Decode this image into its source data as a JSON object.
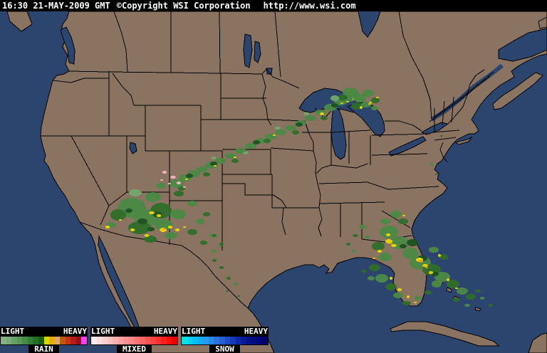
{
  "titlebar": {
    "datetime": "16:30 21-MAY-2009 GMT",
    "copyright": "©Copyright WSI Corporation",
    "url": "http://www.wsi.com"
  },
  "colors": {
    "topbar_bg": "#000000",
    "topbar_text": "#ffffff",
    "water": "#2c456f",
    "land": "#8a7361",
    "border": "#000000"
  },
  "legend": {
    "panels": [
      {
        "name": "RAIN",
        "light": "LIGHT",
        "heavy": "HEAVY",
        "colors": [
          "#86b286",
          "#79aa79",
          "#68a068",
          "#579657",
          "#468c46",
          "#357f35",
          "#257025",
          "#175e17",
          "#d6d700",
          "#edaa00",
          "#d9a878",
          "#c05a10",
          "#c33414",
          "#b41c1c",
          "#931212",
          "#f93df9"
        ]
      },
      {
        "name": "MIXED",
        "light": "LIGHT",
        "heavy": "HEAVY",
        "colors": [
          "#f9eded",
          "#f9dede",
          "#f9cfcf",
          "#f9c0c0",
          "#f9b1b1",
          "#f9a2a2",
          "#f99393",
          "#f98484",
          "#f97575",
          "#f96666",
          "#f95454",
          "#f94242",
          "#f93030",
          "#f91e1e",
          "#f90c0c",
          "#ea0000"
        ]
      },
      {
        "name": "SNOW",
        "light": "LIGHT",
        "heavy": "HEAVY",
        "colors": [
          "#00e5e5",
          "#00d2ec",
          "#00bff3",
          "#14abf3",
          "#249af0",
          "#2a87e8",
          "#2a73de",
          "#2460d2",
          "#1c4cc6",
          "#143ab8",
          "#0c28a8",
          "#041a98",
          "#001089",
          "#000a7f",
          "#000476",
          "#00006e"
        ]
      }
    ]
  },
  "radar": {
    "palette": {
      "g1": "#72a86d",
      "g2": "#4b8a46",
      "g3": "#2f6e2a",
      "g4": "#1d5220",
      "y": "#e8d800",
      "o": "#f0a000",
      "p": "#f2b6c0"
    },
    "blobs": [
      [
        248,
        258,
        10,
        6,
        "g2"
      ],
      [
        260,
        250,
        9,
        5,
        "g2"
      ],
      [
        272,
        244,
        9,
        5,
        "g2"
      ],
      [
        284,
        238,
        8,
        4,
        "g2"
      ],
      [
        297,
        232,
        9,
        5,
        "g2"
      ],
      [
        310,
        226,
        8,
        4,
        "g2"
      ],
      [
        324,
        219,
        8,
        4,
        "g2"
      ],
      [
        338,
        212,
        8,
        4,
        "g2"
      ],
      [
        352,
        205,
        8,
        4,
        "g2"
      ],
      [
        366,
        198,
        8,
        4,
        "g2"
      ],
      [
        380,
        192,
        8,
        4,
        "g2"
      ],
      [
        394,
        186,
        8,
        4,
        "g2"
      ],
      [
        408,
        180,
        8,
        4,
        "g2"
      ],
      [
        422,
        173,
        8,
        4,
        "g2"
      ],
      [
        436,
        166,
        8,
        4,
        "g2"
      ],
      [
        450,
        158,
        8,
        4,
        "g2"
      ],
      [
        464,
        151,
        9,
        5,
        "g2"
      ],
      [
        478,
        143,
        9,
        5,
        "g2"
      ],
      [
        490,
        137,
        10,
        6,
        "g2"
      ],
      [
        266,
        247,
        5,
        3,
        "g4"
      ],
      [
        300,
        230,
        5,
        3,
        "g4"
      ],
      [
        360,
        200,
        5,
        3,
        "g4"
      ],
      [
        420,
        175,
        5,
        3,
        "g4"
      ],
      [
        470,
        148,
        5,
        3,
        "g4"
      ],
      [
        255,
        265,
        5,
        3,
        "g3"
      ],
      [
        290,
        245,
        5,
        3,
        "g3"
      ],
      [
        330,
        226,
        5,
        3,
        "g3"
      ],
      [
        375,
        198,
        5,
        3,
        "g3"
      ],
      [
        415,
        186,
        5,
        3,
        "g3"
      ],
      [
        455,
        166,
        5,
        3,
        "g3"
      ],
      [
        300,
        222,
        4,
        2,
        "g1"
      ],
      [
        345,
        215,
        4,
        2,
        "g1"
      ],
      [
        390,
        180,
        4,
        2,
        "g1"
      ],
      [
        430,
        160,
        4,
        2,
        "g1"
      ],
      [
        262,
        252,
        2,
        1,
        "y"
      ],
      [
        302,
        233,
        2,
        1,
        "y"
      ],
      [
        330,
        221,
        2,
        1,
        "y"
      ],
      [
        385,
        190,
        2,
        1,
        "y"
      ],
      [
        452,
        160,
        3,
        2,
        "y"
      ],
      [
        480,
        145,
        2,
        1,
        "y"
      ],
      [
        497,
        139,
        2,
        2,
        "y"
      ],
      [
        509,
        149,
        2,
        1,
        "y"
      ],
      [
        520,
        144,
        2,
        1,
        "y"
      ],
      [
        231,
        242,
        3,
        2,
        "p"
      ],
      [
        243,
        249,
        4,
        2,
        "p"
      ],
      [
        251,
        257,
        3,
        2,
        "p"
      ],
      [
        227,
        253,
        2,
        1,
        "p"
      ],
      [
        259,
        263,
        2,
        1,
        "p"
      ],
      [
        238,
        258,
        2,
        1,
        "p"
      ],
      [
        492,
        130,
        11,
        7,
        "g2"
      ],
      [
        505,
        138,
        9,
        6,
        "g2"
      ],
      [
        517,
        131,
        8,
        5,
        "g2"
      ],
      [
        501,
        149,
        8,
        5,
        "g3"
      ],
      [
        514,
        147,
        7,
        4,
        "g2"
      ],
      [
        527,
        141,
        6,
        4,
        "g3"
      ],
      [
        481,
        137,
        7,
        4,
        "g3"
      ],
      [
        526,
        152,
        5,
        3,
        "g2"
      ],
      [
        470,
        138,
        6,
        4,
        "g1"
      ],
      [
        507,
        151,
        2,
        2,
        "y"
      ],
      [
        519,
        146,
        2,
        1,
        "y"
      ],
      [
        530,
        137,
        2,
        1,
        "y"
      ],
      [
        488,
        143,
        2,
        1,
        "y"
      ],
      [
        185,
        292,
        20,
        14,
        "g2"
      ],
      [
        206,
        306,
        18,
        12,
        "g2"
      ],
      [
        226,
        296,
        15,
        11,
        "g3"
      ],
      [
        196,
        320,
        16,
        9,
        "g3"
      ],
      [
        230,
        316,
        13,
        8,
        "g2"
      ],
      [
        166,
        302,
        11,
        8,
        "g3"
      ],
      [
        250,
        301,
        11,
        7,
        "g2"
      ],
      [
        215,
        277,
        11,
        7,
        "g2"
      ],
      [
        251,
        272,
        7,
        4,
        "g3"
      ],
      [
        270,
        286,
        7,
        4,
        "g2"
      ],
      [
        240,
        331,
        9,
        5,
        "g2"
      ],
      [
        270,
        326,
        7,
        4,
        "g3"
      ],
      [
        281,
        311,
        6,
        4,
        "g2"
      ],
      [
        156,
        316,
        7,
        4,
        "g2"
      ],
      [
        211,
        336,
        9,
        5,
        "g3"
      ],
      [
        226,
        261,
        7,
        4,
        "g2"
      ],
      [
        190,
        271,
        9,
        5,
        "g1"
      ],
      [
        290,
        301,
        5,
        3,
        "g3"
      ],
      [
        298,
        331,
        4,
        3,
        "g2"
      ],
      [
        286,
        341,
        5,
        3,
        "g3"
      ],
      [
        300,
        353,
        4,
        2,
        "g2"
      ],
      [
        311,
        343,
        3,
        2,
        "g3"
      ],
      [
        200,
        311,
        7,
        4,
        "g4"
      ],
      [
        221,
        301,
        6,
        4,
        "g4"
      ],
      [
        181,
        296,
        5,
        3,
        "g4"
      ],
      [
        212,
        322,
        5,
        3,
        "g4"
      ],
      [
        213,
        299,
        4,
        2,
        "y"
      ],
      [
        223,
        303,
        3,
        2,
        "y"
      ],
      [
        151,
        319,
        3,
        2,
        "y"
      ],
      [
        186,
        323,
        3,
        2,
        "y"
      ],
      [
        229,
        323,
        5,
        3,
        "y"
      ],
      [
        239,
        319,
        3,
        2,
        "y"
      ],
      [
        206,
        331,
        3,
        2,
        "y"
      ],
      [
        249,
        323,
        3,
        2,
        "y"
      ],
      [
        259,
        319,
        2,
        1,
        "y"
      ],
      [
        169,
        309,
        2,
        1,
        "y"
      ],
      [
        231,
        322,
        2,
        1,
        "o"
      ],
      [
        301,
        366,
        3,
        2,
        "g3"
      ],
      [
        311,
        376,
        3,
        2,
        "g3"
      ],
      [
        321,
        391,
        3,
        2,
        "g3"
      ],
      [
        331,
        399,
        3,
        2,
        "g2"
      ],
      [
        319,
        409,
        2,
        1,
        "g3"
      ],
      [
        335,
        416,
        2,
        1,
        "g3"
      ],
      [
        301,
        331,
        3,
        2,
        "g3"
      ],
      [
        309,
        347,
        2,
        1,
        "g2"
      ],
      [
        546,
        326,
        13,
        9,
        "g2"
      ],
      [
        561,
        341,
        13,
        9,
        "g2"
      ],
      [
        576,
        356,
        11,
        8,
        "g2"
      ],
      [
        590,
        369,
        15,
        10,
        "g2"
      ],
      [
        606,
        379,
        13,
        8,
        "g3"
      ],
      [
        621,
        389,
        11,
        7,
        "g2"
      ],
      [
        636,
        399,
        9,
        6,
        "g3"
      ],
      [
        649,
        409,
        8,
        5,
        "g2"
      ],
      [
        661,
        417,
        7,
        4,
        "g3"
      ],
      [
        531,
        346,
        9,
        6,
        "g3"
      ],
      [
        541,
        361,
        9,
        6,
        "g2"
      ],
      [
        526,
        376,
        8,
        5,
        "g3"
      ],
      [
        536,
        391,
        9,
        6,
        "g2"
      ],
      [
        549,
        403,
        8,
        5,
        "g3"
      ],
      [
        559,
        415,
        7,
        4,
        "g2"
      ],
      [
        571,
        426,
        6,
        3,
        "g3"
      ],
      [
        556,
        301,
        8,
        5,
        "g2"
      ],
      [
        566,
        311,
        7,
        4,
        "g3"
      ],
      [
        541,
        311,
        7,
        4,
        "g2"
      ],
      [
        609,
        351,
        7,
        4,
        "g2"
      ],
      [
        623,
        361,
        6,
        4,
        "g3"
      ],
      [
        613,
        399,
        7,
        5,
        "g2"
      ],
      [
        601,
        411,
        5,
        3,
        "g3"
      ],
      [
        587,
        419,
        5,
        3,
        "g2"
      ],
      [
        641,
        421,
        5,
        3,
        "g3"
      ],
      [
        656,
        429,
        4,
        2,
        "g2"
      ],
      [
        671,
        409,
        4,
        2,
        "g3"
      ],
      [
        677,
        419,
        3,
        2,
        "g2"
      ],
      [
        689,
        429,
        3,
        2,
        "g3"
      ],
      [
        521,
        391,
        5,
        3,
        "g2"
      ],
      [
        511,
        381,
        4,
        2,
        "g3"
      ],
      [
        579,
        341,
        8,
        5,
        "g4"
      ],
      [
        593,
        363,
        7,
        4,
        "g4"
      ],
      [
        566,
        346,
        5,
        3,
        "g4"
      ],
      [
        611,
        385,
        5,
        3,
        "g4"
      ],
      [
        546,
        339,
        5,
        3,
        "y"
      ],
      [
        553,
        345,
        4,
        2,
        "y"
      ],
      [
        589,
        365,
        5,
        3,
        "y"
      ],
      [
        597,
        373,
        4,
        2,
        "y"
      ],
      [
        605,
        383,
        3,
        2,
        "y"
      ],
      [
        561,
        407,
        3,
        2,
        "y"
      ],
      [
        549,
        391,
        2,
        2,
        "y"
      ],
      [
        573,
        417,
        2,
        2,
        "y"
      ],
      [
        583,
        425,
        2,
        1,
        "y"
      ],
      [
        629,
        393,
        2,
        2,
        "y"
      ],
      [
        641,
        405,
        2,
        1,
        "y"
      ],
      [
        533,
        353,
        3,
        2,
        "y"
      ],
      [
        525,
        363,
        2,
        1,
        "y"
      ],
      [
        617,
        359,
        2,
        2,
        "y"
      ],
      [
        567,
        303,
        2,
        1,
        "y"
      ],
      [
        545,
        330,
        3,
        2,
        "y"
      ],
      [
        591,
        367,
        3,
        2,
        "o"
      ],
      [
        549,
        342,
        2,
        1,
        "o"
      ],
      [
        599,
        376,
        2,
        1,
        "o"
      ],
      [
        509,
        319,
        5,
        3,
        "g2"
      ],
      [
        499,
        331,
        4,
        2,
        "g3"
      ],
      [
        516,
        333,
        4,
        2,
        "g2"
      ],
      [
        489,
        343,
        3,
        2,
        "g3"
      ],
      [
        496,
        353,
        3,
        2,
        "g2"
      ],
      [
        620,
        191,
        2,
        1,
        "g3"
      ],
      [
        606,
        231,
        3,
        2,
        "g2"
      ],
      [
        613,
        245,
        2,
        1,
        "g3"
      ]
    ]
  }
}
